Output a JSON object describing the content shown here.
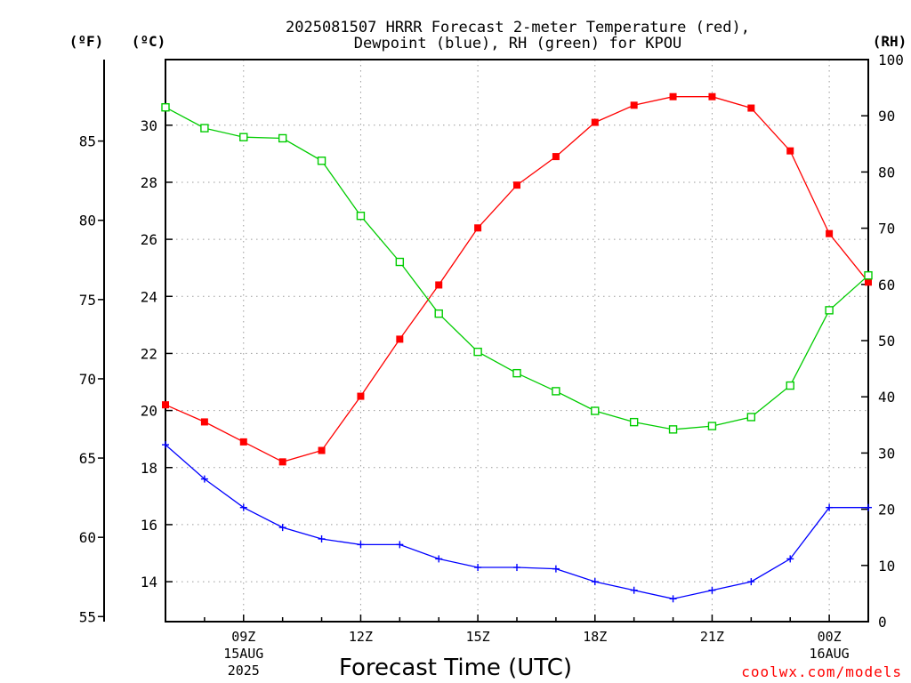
{
  "title": [
    "2025081507 HRRR Forecast 2-meter Temperature (red),",
    "Dewpoint (blue), RH (green) for KPOU"
  ],
  "unit_labels": {
    "fahrenheit": "(ºF)",
    "celsius": "(ºC)",
    "rh": "(RH)"
  },
  "x_axis": {
    "title": "Forecast Time (UTC)",
    "ticks": [
      {
        "label": "09Z",
        "date": "15AUG",
        "year": "2025"
      },
      {
        "label": "12Z"
      },
      {
        "label": "15Z"
      },
      {
        "label": "18Z"
      },
      {
        "label": "21Z"
      },
      {
        "label": "00Z",
        "date": "16AUG"
      }
    ]
  },
  "credit": "coolwx.com/models",
  "colors": {
    "temperature": "#ff0000",
    "dewpoint": "#0000ff",
    "rh": "#00cc00"
  },
  "chart_data": {
    "type": "line",
    "x": [
      "07Z",
      "08Z",
      "09Z",
      "10Z",
      "11Z",
      "12Z",
      "13Z",
      "14Z",
      "15Z",
      "16Z",
      "17Z",
      "18Z",
      "19Z",
      "20Z",
      "21Z",
      "22Z",
      "23Z",
      "00Z",
      "01Z"
    ],
    "x_range_hours": [
      7,
      25
    ],
    "axes": {
      "celsius": {
        "range": [
          12.6,
          32.3
        ],
        "ticks": [
          14,
          16,
          18,
          20,
          22,
          24,
          26,
          28,
          30
        ]
      },
      "fahrenheit": {
        "range": [
          54.68,
          90.14
        ],
        "ticks": [
          55,
          60,
          65,
          70,
          75,
          80,
          85
        ]
      },
      "rh": {
        "range": [
          0,
          100
        ],
        "ticks": [
          0,
          10,
          20,
          30,
          40,
          50,
          60,
          70,
          80,
          90,
          100
        ]
      }
    },
    "grid": true,
    "series": [
      {
        "name": "Temperature",
        "axis": "celsius",
        "marker": "filled-square",
        "values": [
          20.2,
          19.6,
          18.9,
          18.2,
          18.6,
          20.5,
          22.5,
          24.4,
          26.4,
          27.9,
          28.9,
          30.1,
          30.7,
          31.0,
          31.0,
          30.6,
          29.1,
          26.2,
          24.5
        ]
      },
      {
        "name": "Dewpoint",
        "axis": "celsius",
        "marker": "plus",
        "values": [
          18.8,
          17.6,
          16.6,
          15.9,
          15.5,
          15.3,
          15.3,
          14.8,
          14.5,
          14.5,
          14.45,
          14.0,
          13.7,
          13.4,
          13.7,
          14.0,
          14.8,
          16.6,
          16.6
        ]
      },
      {
        "name": "RH",
        "axis": "rh",
        "marker": "open-square",
        "values": [
          91.5,
          87.8,
          86.2,
          86.0,
          82.0,
          72.2,
          64.0,
          54.8,
          48.0,
          44.2,
          41.0,
          37.5,
          35.5,
          34.2,
          34.8,
          36.4,
          42.0,
          55.4,
          61.6
        ]
      }
    ]
  }
}
